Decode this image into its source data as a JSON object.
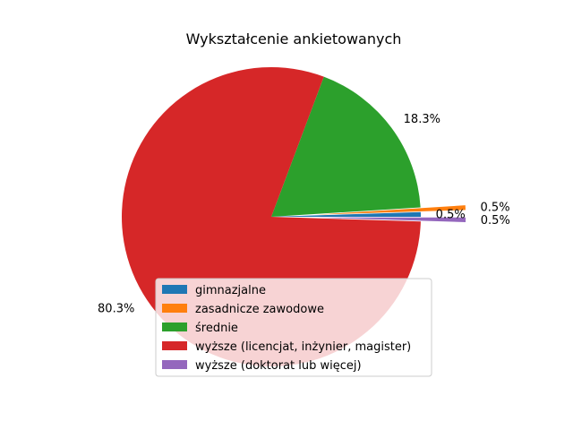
{
  "chart_data": {
    "type": "pie",
    "title": "Wykształcenie ankietowanych",
    "labels": [
      "gimnazjalne",
      "zasadnicze zawodowe",
      "średnie",
      "wyższe (licencjat, inżynier, magister)",
      "wyższe (doktorat lub więcej)"
    ],
    "values": [
      0.5,
      0.5,
      18.3,
      80.3,
      0.5
    ],
    "value_labels": [
      "0.5%",
      "0.5%",
      "18.3%",
      "80.3%",
      "0.5%"
    ],
    "colors": [
      "#1f77b4",
      "#ff7f0e",
      "#2ca02c",
      "#d62728",
      "#9467bd"
    ],
    "exploded": [
      false,
      true,
      false,
      false,
      true
    ],
    "start_angle_deg": 0,
    "legend_position": "lower-center"
  }
}
